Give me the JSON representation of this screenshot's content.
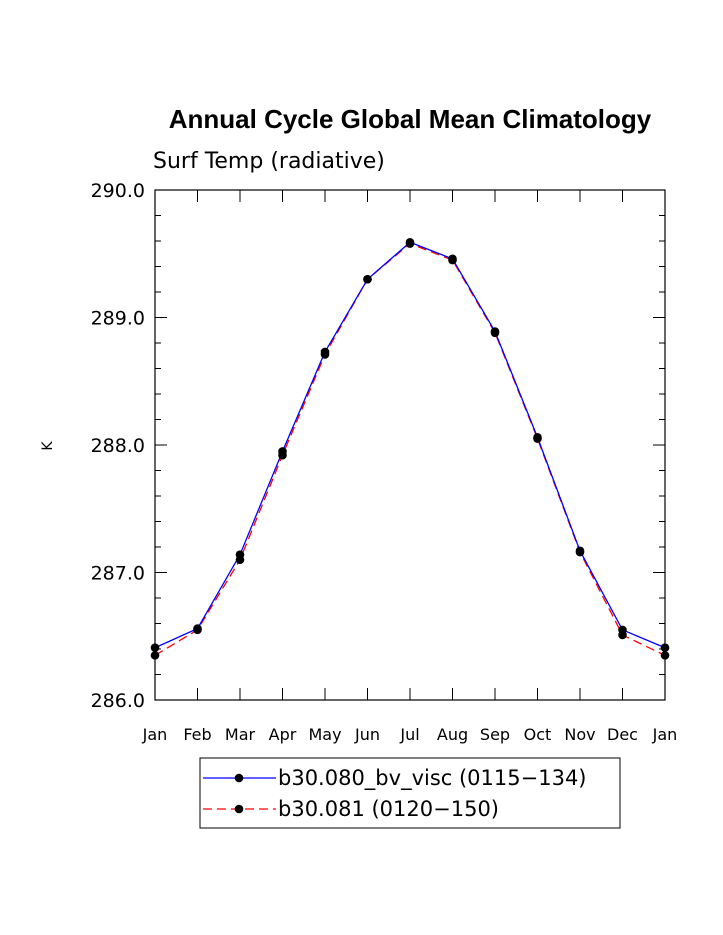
{
  "chart_data": {
    "type": "line",
    "title": "Annual Cycle Global Mean Climatology",
    "subtitle": "Surf Temp (radiative)",
    "xlabel": "",
    "ylabel": "K",
    "categories": [
      "Jan",
      "Feb",
      "Mar",
      "Apr",
      "May",
      "Jun",
      "Jul",
      "Aug",
      "Sep",
      "Oct",
      "Nov",
      "Dec",
      "Jan"
    ],
    "ylim": [
      286.0,
      290.0
    ],
    "yticks": [
      "286.0",
      "287.0",
      "288.0",
      "289.0",
      "290.0"
    ],
    "grid": false,
    "legend_position": "bottom",
    "series": [
      {
        "name": "b30.080_bv_visc (0115-134)",
        "color": "#0000ff",
        "dash": "solid",
        "values": [
          286.41,
          286.56,
          287.14,
          287.95,
          288.73,
          289.3,
          289.59,
          289.46,
          288.89,
          288.06,
          287.17,
          286.55,
          286.41
        ]
      },
      {
        "name": "b30.081 (0120-150)",
        "color": "#ff0000",
        "dash": "dashed",
        "values": [
          286.35,
          286.55,
          287.1,
          287.92,
          288.71,
          289.3,
          289.58,
          289.45,
          288.88,
          288.05,
          287.16,
          286.51,
          286.35
        ]
      }
    ]
  }
}
